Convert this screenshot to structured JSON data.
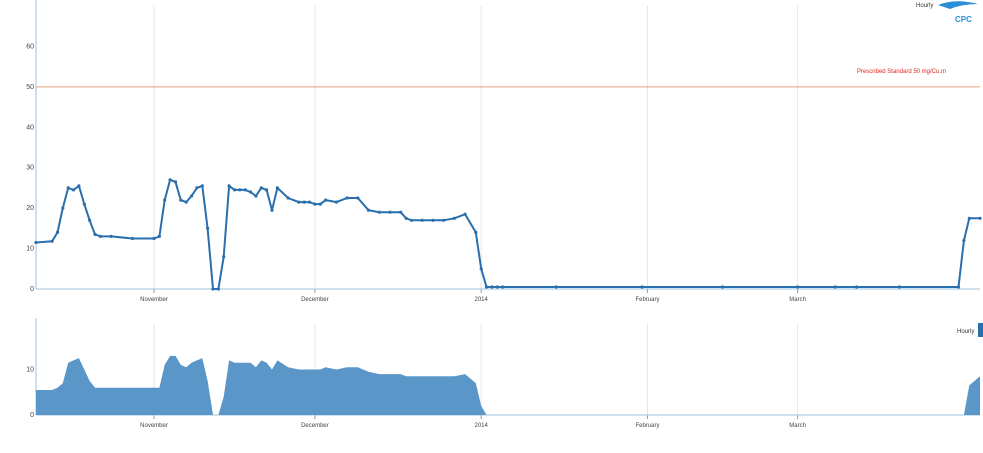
{
  "chart_data": [
    {
      "type": "line",
      "title": "",
      "xlabel": "",
      "ylabel": "",
      "xlim": [
        "2013-10-10",
        "2014-04-04"
      ],
      "ylim": [
        0,
        70
      ],
      "y_ticks": [
        "0",
        "10",
        "20",
        "30",
        "40",
        "50",
        "60"
      ],
      "y_tick_values": [
        0,
        10,
        20,
        30,
        40,
        50,
        60
      ],
      "x_ticks": [
        "November",
        "December",
        "2014",
        "February",
        "March"
      ],
      "x_tick_dates": [
        "2013-11-01",
        "2013-12-01",
        "2014-01-01",
        "2014-02-01",
        "2014-03-01"
      ],
      "standard_line": {
        "value": 50,
        "label": "Prescribed Standard 50 mg/Cu.m",
        "color": "#e8a07a",
        "label_color": "#e0261f"
      },
      "legend": [
        "Hourly",
        "CPC"
      ],
      "grid": true,
      "series": [
        {
          "color": "#2a6fad",
          "x": [
            "2013-10-10",
            "2013-10-13",
            "2013-10-14",
            "2013-10-15",
            "2013-10-16",
            "2013-10-17",
            "2013-10-18",
            "2013-10-19",
            "2013-10-20",
            "2013-10-21",
            "2013-10-22",
            "2013-10-24",
            "2013-10-28",
            "2013-11-01",
            "2013-11-02",
            "2013-11-03",
            "2013-11-04",
            "2013-11-05",
            "2013-11-06",
            "2013-11-07",
            "2013-11-08",
            "2013-11-09",
            "2013-11-10",
            "2013-11-11",
            "2013-11-12",
            "2013-11-13",
            "2013-11-14",
            "2013-11-15",
            "2013-11-16",
            "2013-11-17",
            "2013-11-18",
            "2013-11-19",
            "2013-11-20",
            "2013-11-21",
            "2013-11-22",
            "2013-11-23",
            "2013-11-24",
            "2013-11-26",
            "2013-11-28",
            "2013-11-29",
            "2013-11-30",
            "2013-12-01",
            "2013-12-02",
            "2013-12-03",
            "2013-12-05",
            "2013-12-07",
            "2013-12-09",
            "2013-12-11",
            "2013-12-13",
            "2013-12-15",
            "2013-12-17",
            "2013-12-18",
            "2013-12-19",
            "2013-12-21",
            "2013-12-23",
            "2013-12-25",
            "2013-12-27",
            "2013-12-29",
            "2013-12-31",
            "2014-01-01",
            "2014-01-02",
            "2014-01-03",
            "2014-01-04",
            "2014-01-05",
            "2014-01-15",
            "2014-01-31",
            "2014-02-15",
            "2014-03-01",
            "2014-03-08",
            "2014-03-12",
            "2014-03-20",
            "2014-03-31",
            "2014-04-01",
            "2014-04-02",
            "2014-04-04"
          ],
          "values": [
            11.5,
            11.8,
            14,
            20,
            25,
            24.5,
            25.5,
            21,
            17,
            13.5,
            13,
            13,
            12.5,
            12.5,
            13,
            22,
            27,
            26.5,
            22,
            21.5,
            23,
            25,
            25.5,
            15,
            0,
            0,
            8,
            25.5,
            24.5,
            24.5,
            24.5,
            24,
            23,
            25,
            24.5,
            19.5,
            25,
            22.5,
            21.5,
            21.5,
            21.5,
            21,
            21,
            22,
            21.5,
            22.5,
            22.5,
            19.5,
            19,
            19,
            19,
            17.5,
            17,
            17,
            17,
            17,
            17.5,
            18.5,
            14,
            5,
            0.5,
            0.5,
            0.5,
            0.5,
            0.5,
            0.5,
            0.5,
            0.5,
            0.5,
            0.5,
            0.5,
            0.5,
            12,
            17.5,
            17.5
          ]
        }
      ]
    },
    {
      "type": "area",
      "title": "",
      "xlim": [
        "2013-10-10",
        "2014-04-04"
      ],
      "ylim": [
        0,
        20
      ],
      "y_ticks": [
        "0",
        "10"
      ],
      "y_tick_values": [
        0,
        10
      ],
      "x_ticks": [
        "November",
        "December",
        "2014",
        "February",
        "March"
      ],
      "x_tick_dates": [
        "2013-11-01",
        "2013-12-01",
        "2014-01-01",
        "2014-02-01",
        "2014-03-01"
      ],
      "legend": [
        "Hourly"
      ],
      "series": [
        {
          "color": "#5a96c8",
          "x": [
            "2013-10-10",
            "2013-10-13",
            "2013-10-14",
            "2013-10-15",
            "2013-10-16",
            "2013-10-17",
            "2013-10-18",
            "2013-10-19",
            "2013-10-20",
            "2013-10-21",
            "2013-10-22",
            "2013-10-24",
            "2013-10-28",
            "2013-11-01",
            "2013-11-02",
            "2013-11-03",
            "2013-11-04",
            "2013-11-05",
            "2013-11-06",
            "2013-11-07",
            "2013-11-08",
            "2013-11-09",
            "2013-11-10",
            "2013-11-11",
            "2013-11-12",
            "2013-11-13",
            "2013-11-14",
            "2013-11-15",
            "2013-11-16",
            "2013-11-17",
            "2013-11-18",
            "2013-11-19",
            "2013-11-20",
            "2013-11-21",
            "2013-11-22",
            "2013-11-23",
            "2013-11-24",
            "2013-11-26",
            "2013-11-28",
            "2013-11-29",
            "2013-11-30",
            "2013-12-01",
            "2013-12-02",
            "2013-12-03",
            "2013-12-05",
            "2013-12-07",
            "2013-12-09",
            "2013-12-11",
            "2013-12-13",
            "2013-12-15",
            "2013-12-17",
            "2013-12-18",
            "2013-12-19",
            "2013-12-21",
            "2013-12-23",
            "2013-12-25",
            "2013-12-27",
            "2013-12-29",
            "2013-12-31",
            "2014-01-01",
            "2014-01-02",
            "2014-01-03",
            "2014-04-01",
            "2014-04-02",
            "2014-04-04"
          ],
          "values": [
            5.5,
            5.5,
            6,
            7,
            11.5,
            12,
            12.5,
            10,
            7.5,
            6,
            6,
            6,
            6,
            6,
            6,
            11,
            13,
            13,
            11,
            10.5,
            11.5,
            12,
            12.5,
            7.5,
            0,
            0,
            4,
            12,
            11.5,
            11.5,
            11.5,
            11.5,
            10.5,
            12,
            11.5,
            10,
            12,
            10.5,
            10,
            10,
            10,
            10,
            10,
            10.5,
            10,
            10.5,
            10.5,
            9.5,
            9,
            9,
            9,
            8.5,
            8.5,
            8.5,
            8.5,
            8.5,
            8.5,
            9,
            7,
            2,
            0,
            0,
            0,
            6.5,
            8.5
          ]
        }
      ]
    }
  ]
}
